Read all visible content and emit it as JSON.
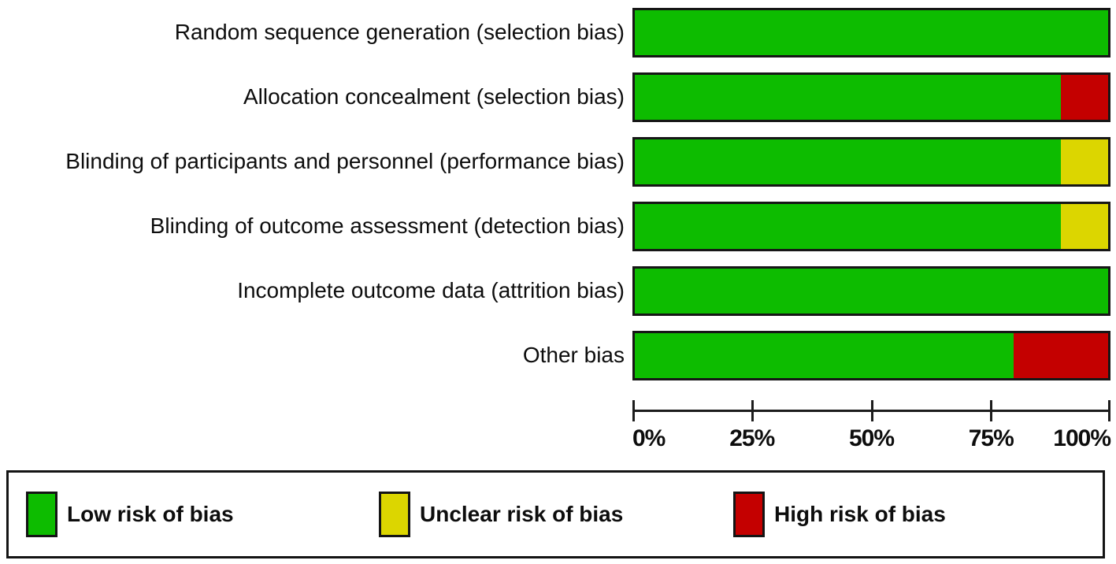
{
  "colors": {
    "low": "#0dbc00",
    "unclear": "#dcd600",
    "high": "#c40000",
    "border": "#161616"
  },
  "chart_data": {
    "type": "bar",
    "orientation": "horizontal-stacked",
    "title": "",
    "xlabel": "",
    "ylabel": "",
    "xlim": [
      0,
      100
    ],
    "grid": false,
    "legend_position": "bottom",
    "categories": [
      "Random sequence generation (selection bias)",
      "Allocation concealment (selection bias)",
      "Blinding of participants and personnel (performance bias)",
      "Blinding of outcome assessment (detection bias)",
      "Incomplete outcome data (attrition bias)",
      "Other bias"
    ],
    "series": [
      {
        "name": "Low risk of bias",
        "key": "low",
        "values": [
          100,
          90,
          90,
          90,
          100,
          80
        ]
      },
      {
        "name": "Unclear risk of bias",
        "key": "unclear",
        "values": [
          0,
          0,
          10,
          10,
          0,
          0
        ]
      },
      {
        "name": "High risk of bias",
        "key": "high",
        "values": [
          0,
          10,
          0,
          0,
          0,
          20
        ]
      }
    ],
    "x_ticks": [
      "0%",
      "25%",
      "50%",
      "75%",
      "100%"
    ]
  },
  "legend": {
    "items": [
      {
        "label": "Low risk of bias",
        "color": "#0dbc00"
      },
      {
        "label": "Unclear risk of bias",
        "color": "#dcd600"
      },
      {
        "label": "High risk of bias",
        "color": "#c40000"
      }
    ]
  }
}
